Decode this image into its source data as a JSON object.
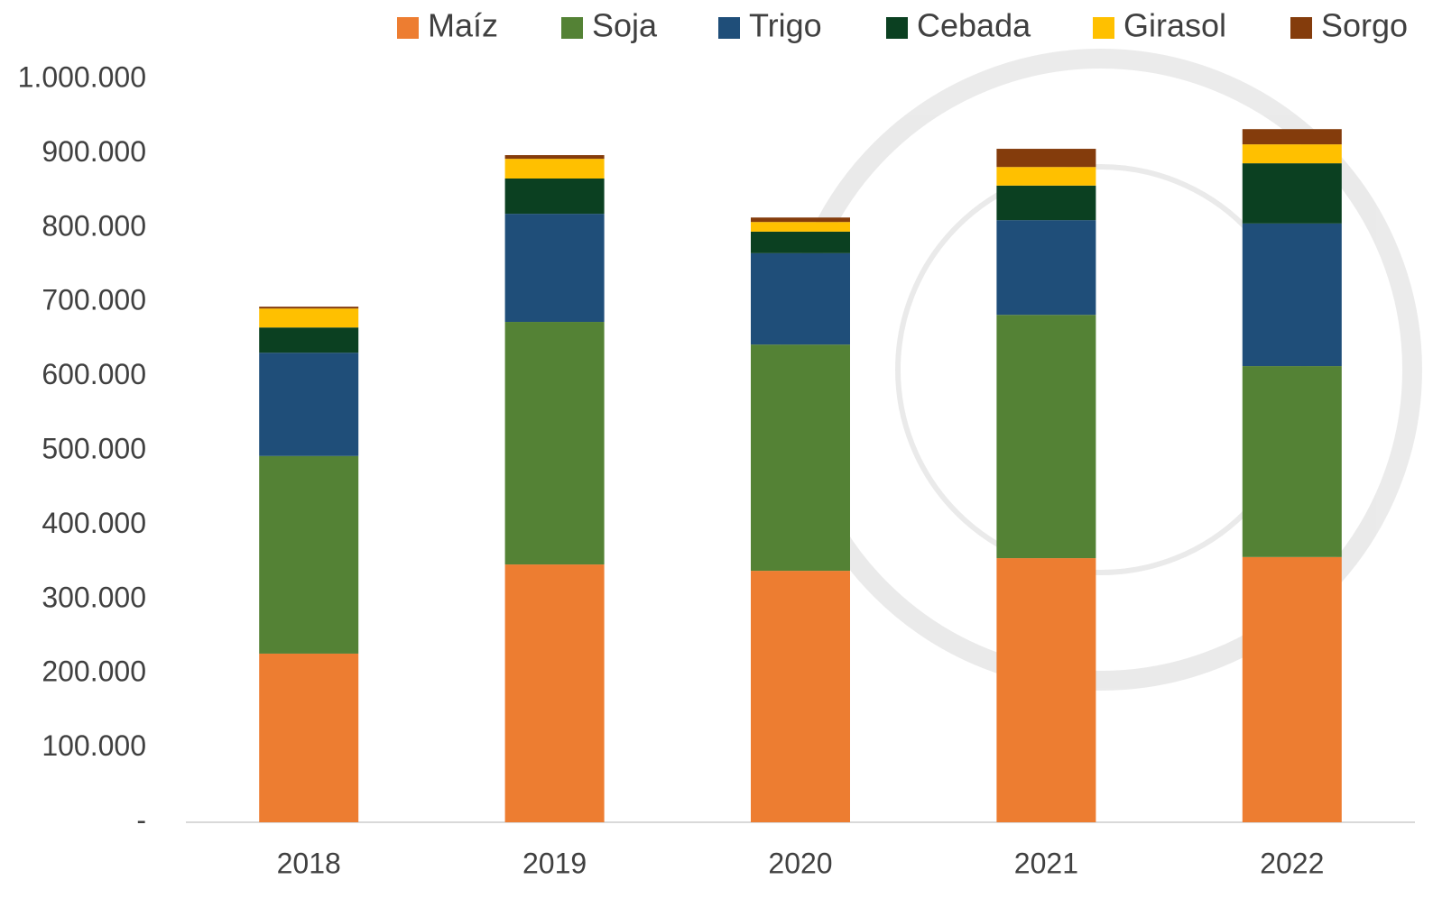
{
  "chart_data": {
    "type": "stacked_bar",
    "categories": [
      "2018",
      "2019",
      "2020",
      "2021",
      "2022"
    ],
    "series": [
      {
        "name": "Maíz",
        "color": "#ED7D31",
        "values": [
          227000,
          347000,
          338500,
          355500,
          357000
        ]
      },
      {
        "name": "Soja",
        "color": "#548235",
        "values": [
          266000,
          326500,
          304500,
          327500,
          257000
        ]
      },
      {
        "name": "Trigo",
        "color": "#1F4E79",
        "values": [
          139000,
          145500,
          123000,
          127500,
          192000
        ]
      },
      {
        "name": "Cebada",
        "color": "#0B4021",
        "values": [
          34000,
          47500,
          29000,
          46500,
          81000
        ]
      },
      {
        "name": "Girasol",
        "color": "#FFC000",
        "values": [
          25500,
          26500,
          13000,
          25000,
          25500
        ]
      },
      {
        "name": "Sorgo",
        "color": "#843C0C",
        "values": [
          2500,
          5000,
          6000,
          24500,
          20500
        ]
      }
    ],
    "ylim": [
      0,
      1000000
    ],
    "yticks": [
      {
        "value": 0,
        "label": "-"
      },
      {
        "value": 100000,
        "label": "100.000"
      },
      {
        "value": 200000,
        "label": "200.000"
      },
      {
        "value": 300000,
        "label": "300.000"
      },
      {
        "value": 400000,
        "label": "400.000"
      },
      {
        "value": 500000,
        "label": "500.000"
      },
      {
        "value": 600000,
        "label": "600.000"
      },
      {
        "value": 700000,
        "label": "700.000"
      },
      {
        "value": 800000,
        "label": "800.000"
      },
      {
        "value": 900000,
        "label": "900.000"
      },
      {
        "value": 1000000,
        "label": "1.000.000"
      }
    ],
    "legend": "top"
  }
}
